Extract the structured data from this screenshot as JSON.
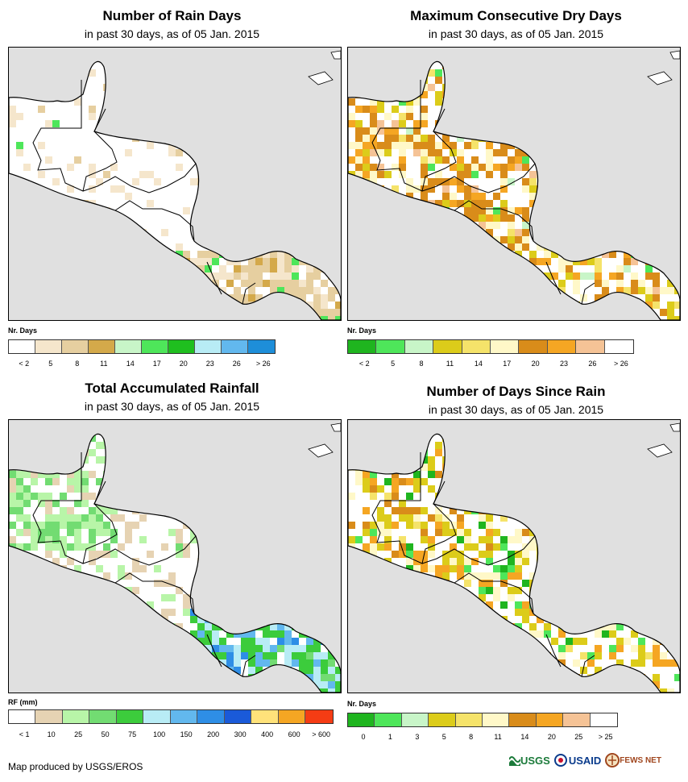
{
  "panels": [
    {
      "title": "Number of Rain Days",
      "subtitle": "in past 30 days, as of 05 Jan. 2015",
      "legend_unit": "Nr. Days",
      "legend_colors": [
        "#ffffff",
        "#f5e6cc",
        "#e6cfa0",
        "#d4a94a",
        "#c8f5c8",
        "#4ee65a",
        "#1fbf1f",
        "#b8ecf5",
        "#62b8ee",
        "#1e8ed9"
      ],
      "legend_labels": [
        "< 2",
        "5",
        "8",
        "11",
        "14",
        "17",
        "20",
        "23",
        "26",
        "> 26"
      ],
      "scheme": "raindays"
    },
    {
      "title": "Maximum Consecutive Dry Days",
      "subtitle": "in past 30 days, as of 05 Jan. 2015",
      "legend_unit": "Nr. Days",
      "legend_colors": [
        "#1fb51f",
        "#4ee65a",
        "#c8f5c8",
        "#dccc1a",
        "#f5e36a",
        "#fff8c8",
        "#d98c1a",
        "#f5a623",
        "#f5c396",
        "#ffffff"
      ],
      "legend_labels": [
        "< 2",
        "5",
        "8",
        "11",
        "14",
        "17",
        "20",
        "23",
        "26",
        "> 26"
      ],
      "scheme": "drydays"
    },
    {
      "title": "Total Accumulated Rainfall",
      "subtitle": "in past 30 days, as of 05 Jan. 2015",
      "legend_unit": "RF (mm)",
      "legend_colors": [
        "#ffffff",
        "#e6d3b3",
        "#b8f5a8",
        "#72dc72",
        "#3ccc3c",
        "#b8ecf5",
        "#62b8ee",
        "#2e8ee6",
        "#1a5ad9",
        "#ffe27a",
        "#f5a623",
        "#f53c14"
      ],
      "legend_labels": [
        "< 1",
        "10",
        "25",
        "50",
        "75",
        "100",
        "150",
        "200",
        "300",
        "400",
        "600",
        "> 600"
      ],
      "scheme": "rainfall"
    },
    {
      "title": "Number of Days Since Rain",
      "subtitle": "in past 30 days, as of 05 Jan. 2015",
      "legend_unit": "Nr. Days",
      "legend_colors": [
        "#1fb51f",
        "#4ee65a",
        "#c8f5c8",
        "#dccc1a",
        "#f5e36a",
        "#fff8c8",
        "#d98c1a",
        "#f5a623",
        "#f5c396",
        "#ffffff"
      ],
      "legend_labels": [
        "0",
        "1",
        "3",
        "5",
        "8",
        "11",
        "14",
        "20",
        "25",
        "> 25"
      ],
      "scheme": "sincerain"
    }
  ],
  "footer": "Map produced by USGS/EROS",
  "logos": {
    "usgs": "USGS",
    "usaid": "USAID",
    "fewsnet": "FEWS NET"
  },
  "colors": {
    "ocean": "#e0e0e0",
    "land": "#ffffff",
    "border": "#000000"
  }
}
